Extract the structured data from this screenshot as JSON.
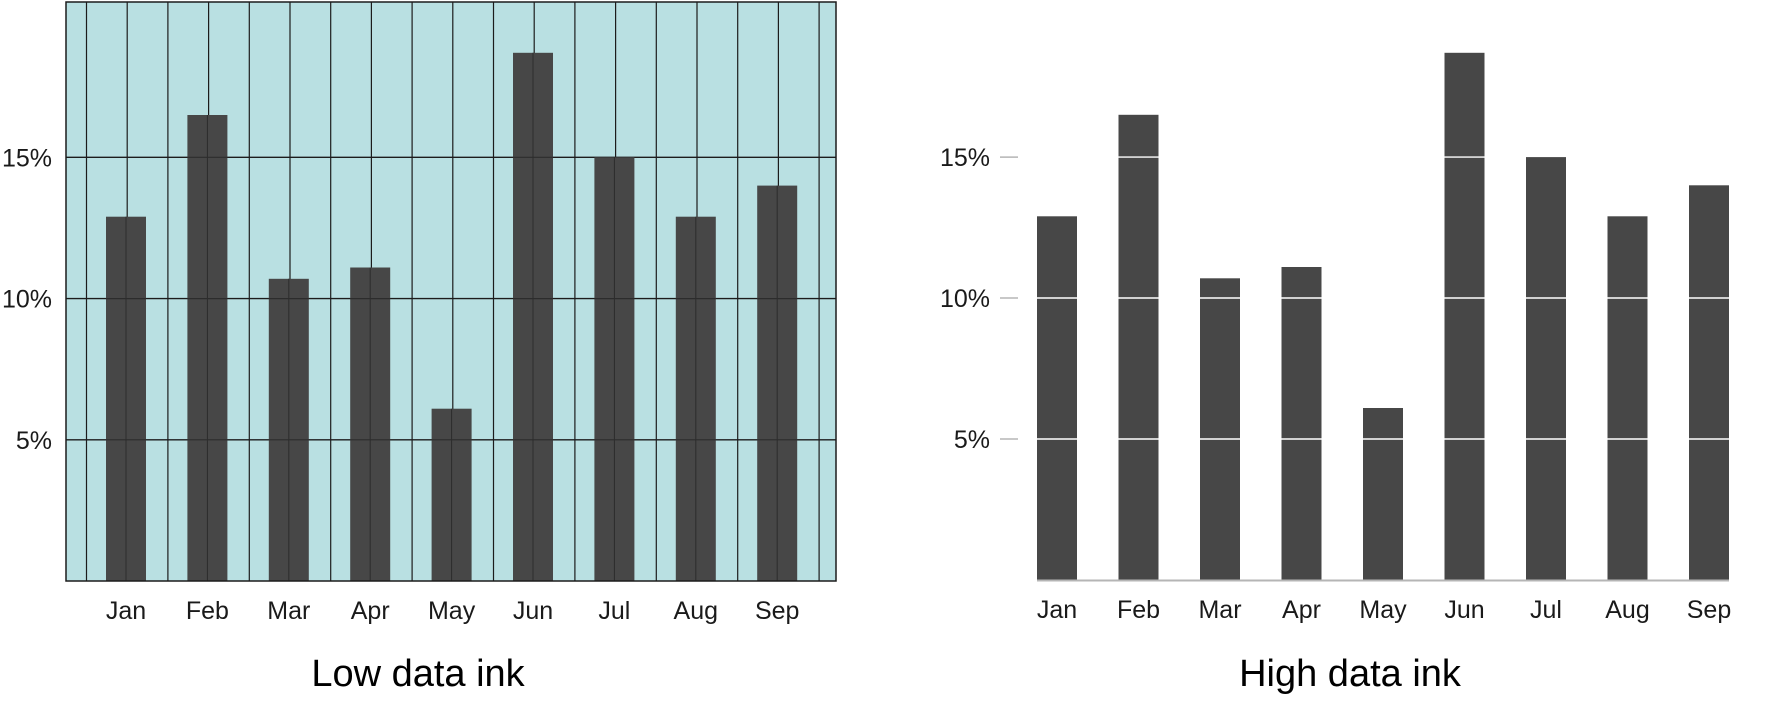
{
  "chart_data": [
    {
      "type": "bar",
      "caption": "Low data ink",
      "categories": [
        "Jan",
        "Feb",
        "Mar",
        "Apr",
        "May",
        "Jun",
        "Jul",
        "Aug",
        "Sep"
      ],
      "values": [
        12.9,
        16.5,
        10.7,
        11.1,
        6.1,
        18.7,
        15.0,
        12.9,
        14.0
      ],
      "yticks": [
        "5%",
        "10%",
        "15%"
      ],
      "ytick_values": [
        5,
        10,
        15
      ],
      "ylim": [
        0,
        20.5
      ],
      "grid": true,
      "background_fill": true,
      "colors": {
        "bar": "#474747",
        "background": "#b9e0e2",
        "grid": "#1c1c1c"
      }
    },
    {
      "type": "bar",
      "caption": "High data ink",
      "categories": [
        "Jan",
        "Feb",
        "Mar",
        "Apr",
        "May",
        "Jun",
        "Jul",
        "Aug",
        "Sep"
      ],
      "values": [
        12.9,
        16.5,
        10.7,
        11.1,
        6.1,
        18.7,
        15.0,
        12.9,
        14.0
      ],
      "yticks": [
        "5%",
        "10%",
        "15%"
      ],
      "ytick_values": [
        5,
        10,
        15
      ],
      "ylim": [
        0,
        20.5
      ],
      "grid": false,
      "gridlines_through_bars_only": true,
      "background_fill": false,
      "colors": {
        "bar": "#474747",
        "background": "#ffffff",
        "grid": "#ffffff",
        "axis": "#b5b5b5"
      }
    }
  ]
}
